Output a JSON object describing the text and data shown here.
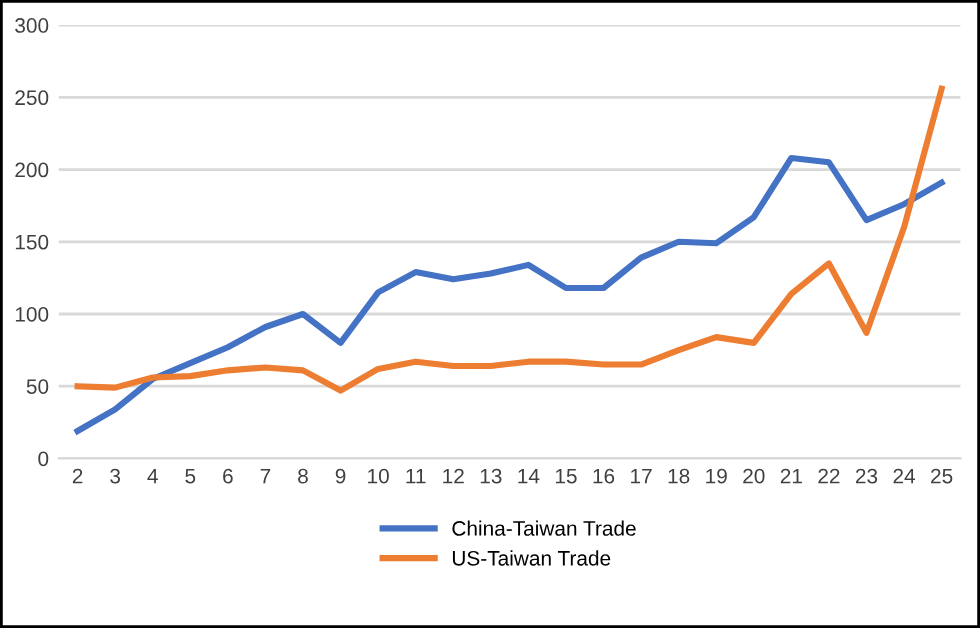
{
  "chart_data": {
    "type": "line",
    "categories": [
      "2",
      "3",
      "4",
      "5",
      "6",
      "7",
      "8",
      "9",
      "10",
      "11",
      "12",
      "13",
      "14",
      "15",
      "16",
      "17",
      "18",
      "19",
      "20",
      "21",
      "22",
      "23",
      "24",
      "25"
    ],
    "series": [
      {
        "name": "China-Taiwan Trade",
        "color": "#4472c4",
        "values": [
          19,
          34,
          55,
          66,
          77,
          91,
          100,
          80,
          115,
          129,
          124,
          128,
          134,
          118,
          118,
          139,
          150,
          149,
          167,
          208,
          205,
          165,
          176,
          191
        ]
      },
      {
        "name": "US-Taiwan Trade",
        "color": "#ed7d31",
        "values": [
          50,
          49,
          56,
          57,
          61,
          63,
          61,
          47,
          62,
          67,
          64,
          64,
          67,
          67,
          65,
          65,
          75,
          84,
          80,
          114,
          135,
          87,
          160,
          256
        ]
      }
    ],
    "ylim": [
      0,
      300
    ],
    "yticks": [
      0,
      50,
      100,
      150,
      200,
      250,
      300
    ],
    "grid": "y",
    "legend": "bottom",
    "marker": "none",
    "line_style": "solid"
  }
}
